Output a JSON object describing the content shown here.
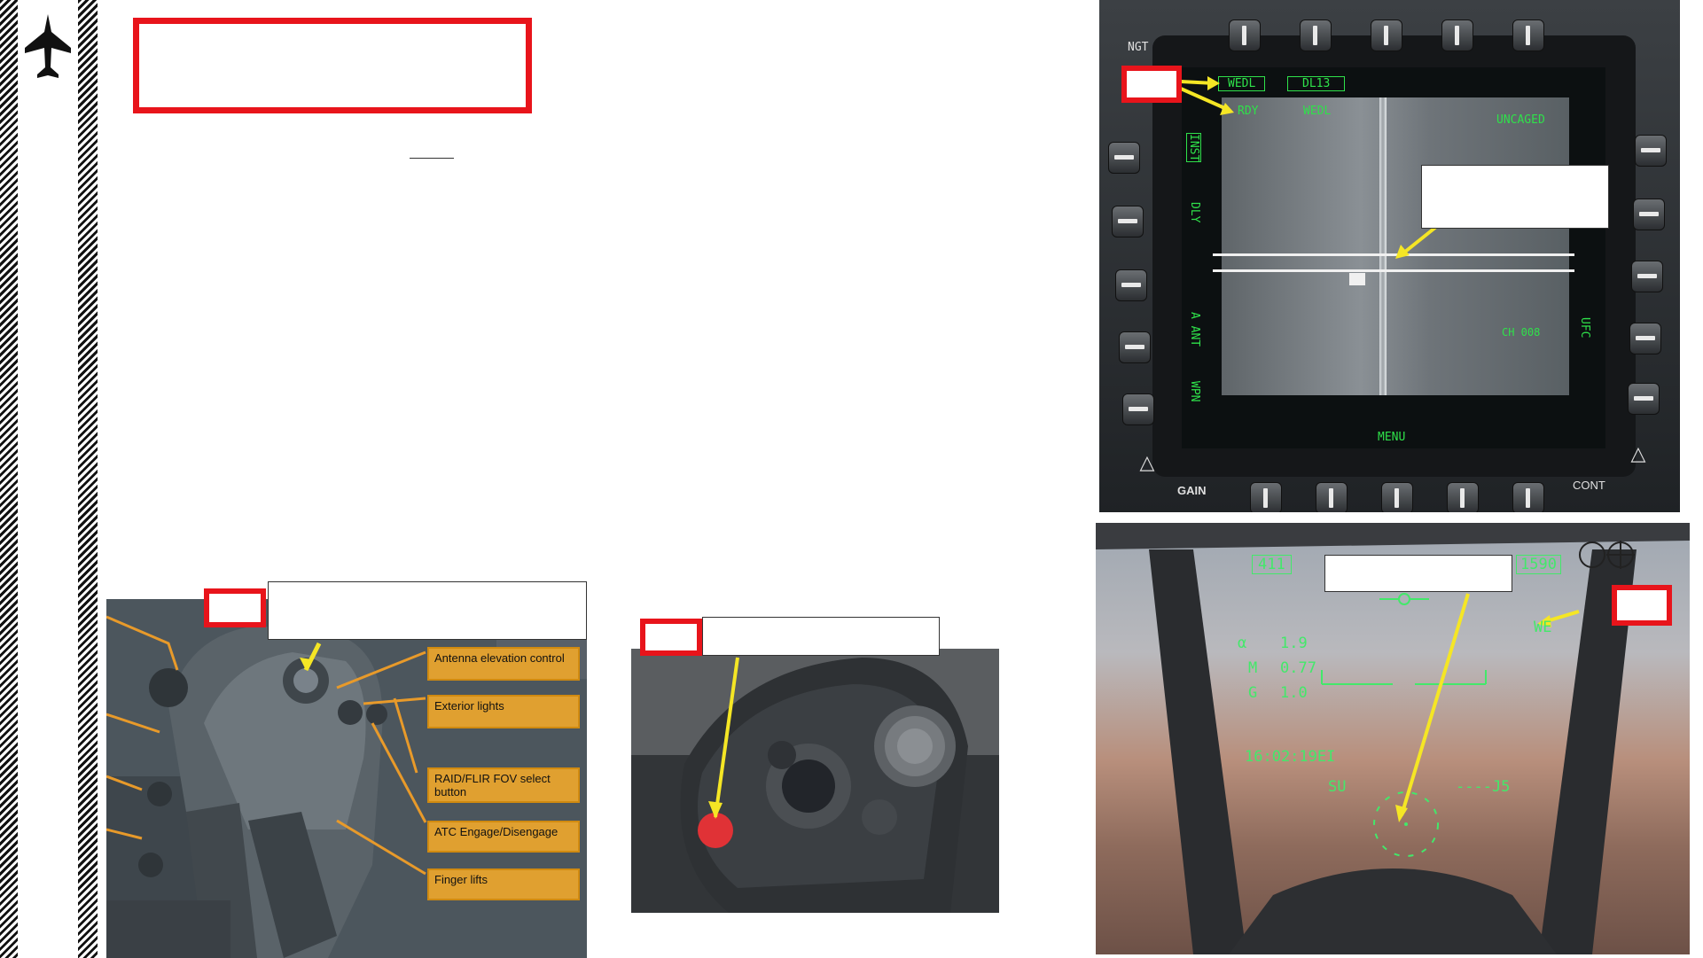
{
  "page": {
    "header_box_text": "",
    "bottom_captions": [
      "",
      "",
      ""
    ]
  },
  "throttle_photo": {
    "callouts": [
      "Antenna elevation control",
      "Exterior lights",
      "RAID/FLIR FOV select button",
      "ATC Engage/Disengage",
      "Finger lifts"
    ]
  },
  "mfd": {
    "top_left_label": "NGT",
    "data_link_boxes": [
      "WEDL",
      "DL13"
    ],
    "status_left": "RDY",
    "status_mid": "WEDL",
    "status_right": "UNCAGED",
    "left_vertical_1": "INST",
    "left_vertical_2": "DLY",
    "left_vertical_3": "A ANT",
    "left_vertical_4": "WPN",
    "right_vertical": "UFC",
    "channel": "CH 008",
    "menu": "MENU",
    "gain": "GAIN",
    "cont": "CONT"
  },
  "hud": {
    "airspeed": "411",
    "altitude": "1590",
    "alpha_label": "α",
    "alpha_value": "1.9",
    "mach_label": "M",
    "mach_value": "0.77",
    "g_label": "G",
    "g_value": "1.0",
    "time": "16:02:19EI",
    "weapon_code": "WE",
    "heading_left": "SU",
    "heading_right": "----J5"
  },
  "colors": {
    "callout_red": "#e8141b",
    "arrow_yellow": "#f5e625",
    "mfd_green": "#2fe14a",
    "callout_orange": "#e0a030"
  },
  "icons": {
    "logo": "jet-icon"
  }
}
